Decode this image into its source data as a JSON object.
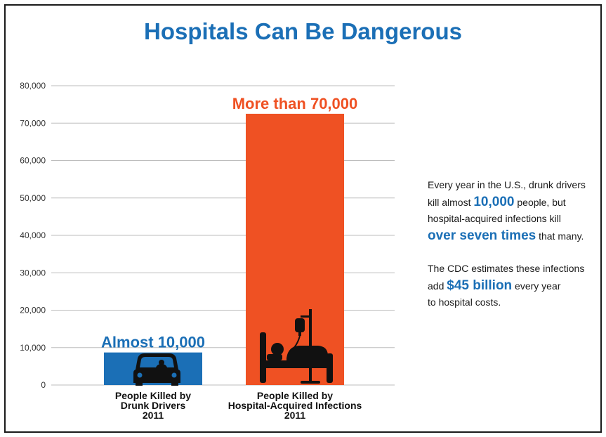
{
  "chart_data": {
    "type": "bar",
    "title": "Hospitals Can Be Dangerous",
    "ylim": [
      0,
      80000
    ],
    "yticks": [
      0,
      10000,
      20000,
      30000,
      40000,
      50000,
      60000,
      70000,
      80000
    ],
    "ytick_labels": [
      "0",
      "10,000",
      "20,000",
      "30,000",
      "40,000",
      "50,000",
      "60,000",
      "70,000",
      "80,000"
    ],
    "grid": true,
    "categories": [
      [
        "People Killed by",
        "Drunk Drivers",
        "2011"
      ],
      [
        "People Killed by",
        "Hospital-Acquired Infections",
        "2011"
      ]
    ],
    "values": [
      8700,
      72500
    ],
    "data_labels": [
      "Almost 10,000",
      "More than 70,000"
    ],
    "colors": [
      "#1b6fb6",
      "#ef5123"
    ],
    "icons": [
      "car-icon",
      "hospital-bed-icon"
    ],
    "xlabel": "",
    "ylabel": ""
  },
  "side_text": {
    "p1": [
      "Every year in the U.S., drunk drivers",
      "kill almost ",
      "10,000",
      " people, but",
      "hospital-acquired infections kill",
      "over seven times",
      " that many."
    ],
    "p2": [
      "The CDC estimates these infections",
      "add ",
      "$45 billion",
      " every year",
      "to hospital costs."
    ]
  }
}
